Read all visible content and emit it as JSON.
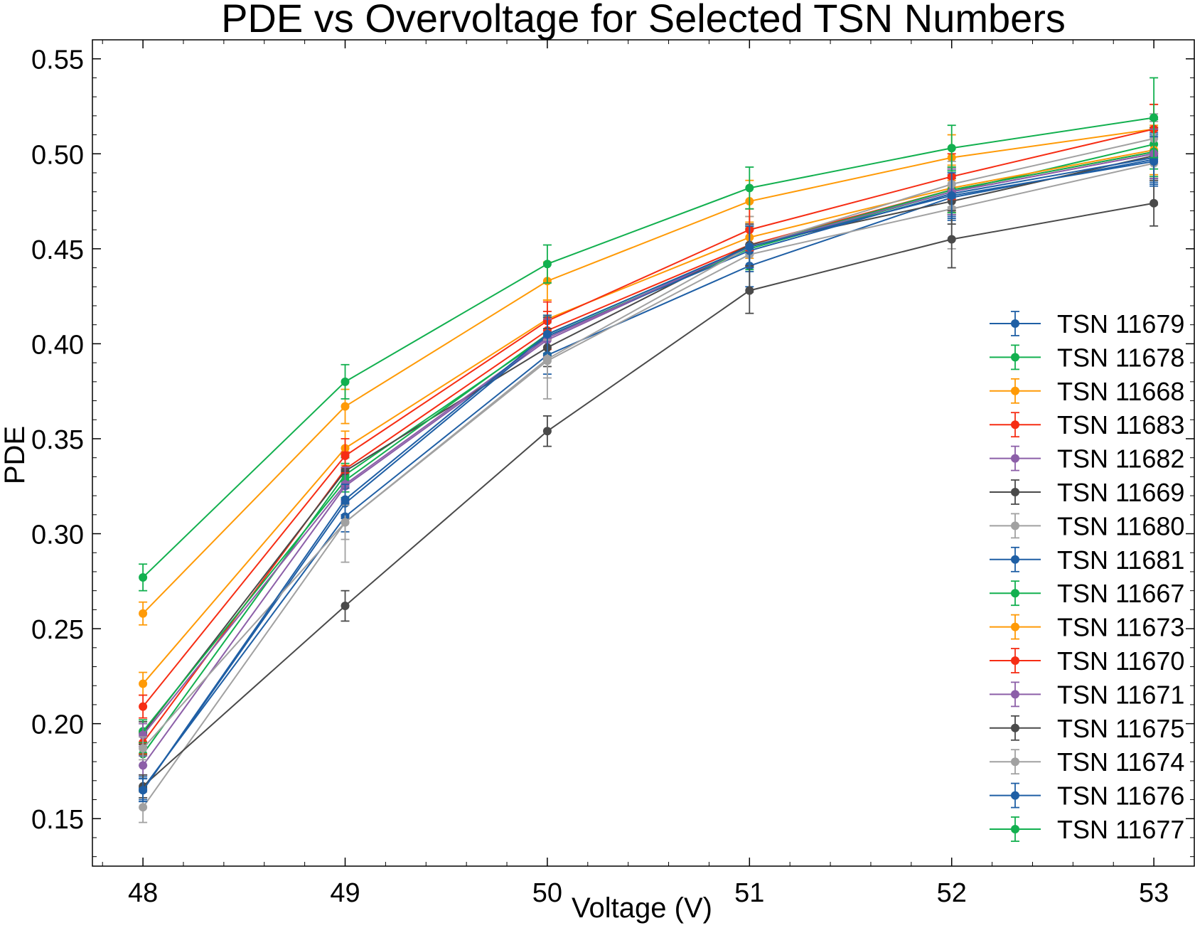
{
  "chart_data": {
    "type": "line",
    "title": "PDE vs Overvoltage for Selected TSN Numbers",
    "xlabel": "Voltage (V)",
    "ylabel": "PDE",
    "x": [
      48,
      49,
      50,
      51,
      52,
      53
    ],
    "x_ticks": [
      "48",
      "49",
      "50",
      "51",
      "52",
      "53"
    ],
    "y_ticks": [
      "0.15",
      "0.20",
      "0.25",
      "0.30",
      "0.35",
      "0.40",
      "0.45",
      "0.50",
      "0.55"
    ],
    "xlim": [
      47.75,
      53.2
    ],
    "ylim": [
      0.125,
      0.56
    ],
    "grid": false,
    "legend_position": "lower-right",
    "series": [
      {
        "name": "TSN 11679",
        "color": "#1f5fa5",
        "values": [
          0.166,
          0.309,
          0.394,
          0.441,
          0.477,
          0.497
        ],
        "errors": [
          0.006,
          0.008,
          0.01,
          0.011,
          0.012,
          0.013
        ]
      },
      {
        "name": "TSN 11678",
        "color": "#12b04f",
        "values": [
          0.184,
          0.331,
          0.404,
          0.45,
          0.48,
          0.505
        ],
        "errors": [
          0.006,
          0.009,
          0.01,
          0.011,
          0.012,
          0.013
        ]
      },
      {
        "name": "TSN 11668",
        "color": "#ff9a06",
        "values": [
          0.221,
          0.345,
          0.413,
          0.456,
          0.482,
          0.502
        ],
        "errors": [
          0.006,
          0.009,
          0.01,
          0.011,
          0.012,
          0.013
        ]
      },
      {
        "name": "TSN 11683",
        "color": "#f62d14",
        "values": [
          0.19,
          0.334,
          0.407,
          0.452,
          0.481,
          0.501
        ],
        "errors": [
          0.006,
          0.009,
          0.01,
          0.011,
          0.012,
          0.013
        ]
      },
      {
        "name": "TSN 11682",
        "color": "#8c5fa8",
        "values": [
          0.178,
          0.325,
          0.402,
          0.451,
          0.48,
          0.5
        ],
        "errors": [
          0.005,
          0.009,
          0.01,
          0.011,
          0.012,
          0.013
        ]
      },
      {
        "name": "TSN 11669",
        "color": "#4a4a4a",
        "values": [
          0.195,
          0.333,
          0.398,
          0.452,
          0.475,
          0.499
        ],
        "errors": [
          0.006,
          0.009,
          0.01,
          0.011,
          0.012,
          0.013
        ]
      },
      {
        "name": "TSN 11680",
        "color": "#a1a1a1",
        "values": [
          0.156,
          0.306,
          0.391,
          0.447,
          0.471,
          0.495
        ],
        "errors": [
          0.008,
          0.021,
          0.02,
          0.02,
          0.021,
          0.022
        ]
      },
      {
        "name": "TSN 11681",
        "color": "#1f5fa5",
        "values": [
          0.165,
          0.316,
          0.404,
          0.449,
          0.479,
          0.498
        ],
        "errors": [
          0.006,
          0.008,
          0.01,
          0.011,
          0.012,
          0.013
        ]
      },
      {
        "name": "TSN 11667",
        "color": "#12b04f",
        "values": [
          0.196,
          0.328,
          0.405,
          0.451,
          0.481,
          0.501
        ],
        "errors": [
          0.006,
          0.009,
          0.01,
          0.011,
          0.012,
          0.013
        ]
      },
      {
        "name": "TSN 11673",
        "color": "#ff9a06",
        "values": [
          0.258,
          0.367,
          0.433,
          0.475,
          0.498,
          0.513
        ],
        "errors": [
          0.006,
          0.009,
          0.01,
          0.011,
          0.012,
          0.013
        ]
      },
      {
        "name": "TSN 11670",
        "color": "#f62d14",
        "values": [
          0.209,
          0.341,
          0.412,
          0.46,
          0.488,
          0.513
        ],
        "errors": [
          0.006,
          0.009,
          0.01,
          0.011,
          0.012,
          0.013
        ]
      },
      {
        "name": "TSN 11671",
        "color": "#8c5fa8",
        "values": [
          0.194,
          0.326,
          0.403,
          0.451,
          0.48,
          0.5
        ],
        "errors": [
          0.006,
          0.009,
          0.01,
          0.011,
          0.012,
          0.013
        ]
      },
      {
        "name": "TSN 11675",
        "color": "#4a4a4a",
        "values": [
          0.167,
          0.262,
          0.354,
          0.428,
          0.455,
          0.474
        ],
        "errors": [
          0.006,
          0.008,
          0.008,
          0.012,
          0.015,
          0.012
        ]
      },
      {
        "name": "TSN 11674",
        "color": "#a1a1a1",
        "values": [
          0.187,
          0.306,
          0.392,
          0.451,
          0.484,
          0.508
        ],
        "errors": [
          0.006,
          0.009,
          0.01,
          0.011,
          0.012,
          0.013
        ]
      },
      {
        "name": "TSN 11676",
        "color": "#1f5fa5",
        "values": [
          0.165,
          0.318,
          0.405,
          0.451,
          0.478,
          0.496
        ],
        "errors": [
          0.006,
          0.008,
          0.01,
          0.011,
          0.012,
          0.013
        ]
      },
      {
        "name": "TSN 11677",
        "color": "#12b04f",
        "values": [
          0.277,
          0.38,
          0.442,
          0.482,
          0.503,
          0.519
        ],
        "errors": [
          0.007,
          0.009,
          0.01,
          0.011,
          0.012,
          0.021
        ]
      }
    ]
  }
}
